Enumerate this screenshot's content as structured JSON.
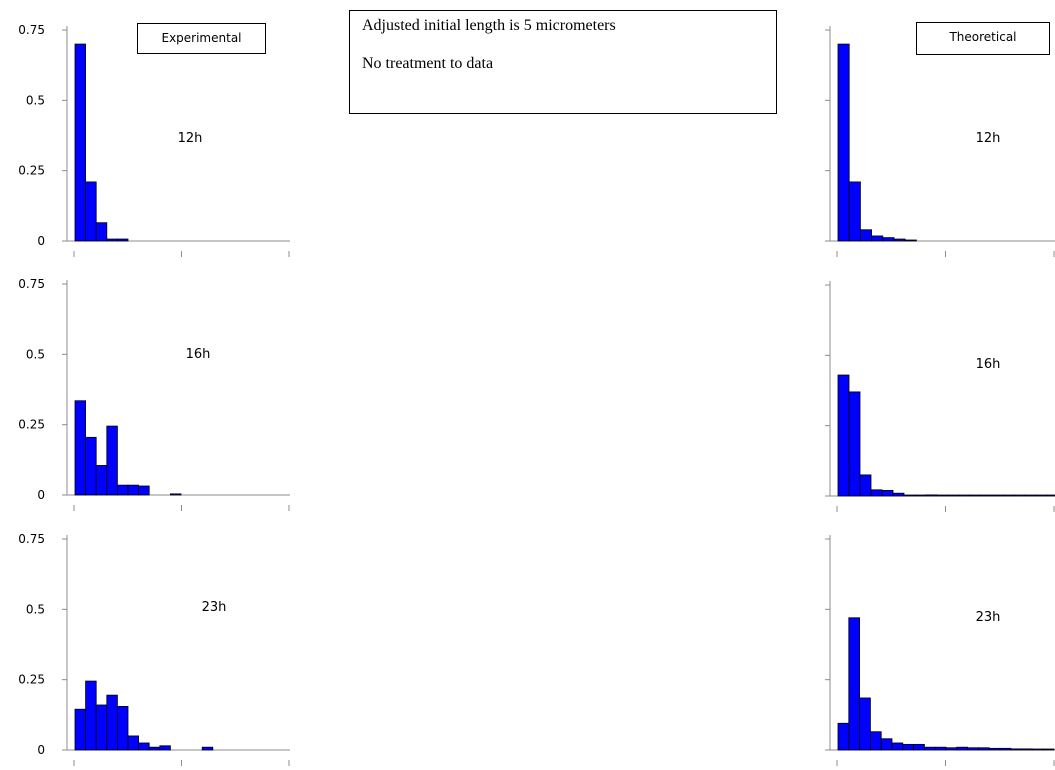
{
  "note": {
    "line1": "Adjusted initial length is 5 micrometers",
    "line2": "No treatment to data"
  },
  "legend": {
    "experimental": "Experimental",
    "theoretical": "Theoretical"
  },
  "bar_color": "#0000ff",
  "chart_data": [
    {
      "type": "bar",
      "name": "Experimental",
      "label": "12h",
      "ylim": [
        0,
        0.75
      ],
      "yticks": [
        "0",
        "0.25",
        "0.5",
        "0.75"
      ],
      "values": [
        0.7,
        0.21,
        0.065,
        0.007,
        0.007,
        0,
        0,
        0,
        0,
        0,
        0,
        0
      ]
    },
    {
      "type": "bar",
      "name": "Experimental",
      "label": "16h",
      "ylim": [
        0,
        0.75
      ],
      "yticks": [
        "0",
        "0.25",
        "0.5",
        "0.75"
      ],
      "values": [
        0.335,
        0.205,
        0.105,
        0.245,
        0.035,
        0.035,
        0.032,
        0,
        0,
        0.004,
        0,
        0
      ]
    },
    {
      "type": "bar",
      "name": "Experimental",
      "label": "23h",
      "ylim": [
        0,
        0.75
      ],
      "yticks": [
        "0",
        "0.25",
        "0.5",
        "0.75"
      ],
      "values": [
        0.145,
        0.245,
        0.16,
        0.195,
        0.155,
        0.05,
        0.025,
        0.01,
        0.015,
        0,
        0,
        0,
        0.01,
        0,
        0
      ]
    },
    {
      "type": "bar",
      "name": "Theoretical",
      "label": "12h",
      "ylim": [
        0,
        0.75
      ],
      "yticks": [],
      "values": [
        0.7,
        0.21,
        0.04,
        0.018,
        0.012,
        0.007,
        0.003,
        0,
        0,
        0,
        0,
        0
      ]
    },
    {
      "type": "bar",
      "name": "Theoretical",
      "label": "16h",
      "ylim": [
        0,
        0.75
      ],
      "yticks": [],
      "values": [
        0.43,
        0.37,
        0.075,
        0.022,
        0.02,
        0.01,
        0.003,
        0.002,
        0.004,
        0.002,
        0.001,
        0.003,
        0.002,
        0.001,
        0.003,
        0.001,
        0.003,
        0.001,
        0.001,
        0.002
      ]
    },
    {
      "type": "bar",
      "name": "Theoretical",
      "label": "23h",
      "ylim": [
        0,
        0.75
      ],
      "yticks": [],
      "values": [
        0.095,
        0.47,
        0.185,
        0.065,
        0.04,
        0.025,
        0.02,
        0.02,
        0.01,
        0.01,
        0.008,
        0.01,
        0.008,
        0.008,
        0.006,
        0.006,
        0.004,
        0.004,
        0.003,
        0.002
      ]
    }
  ]
}
